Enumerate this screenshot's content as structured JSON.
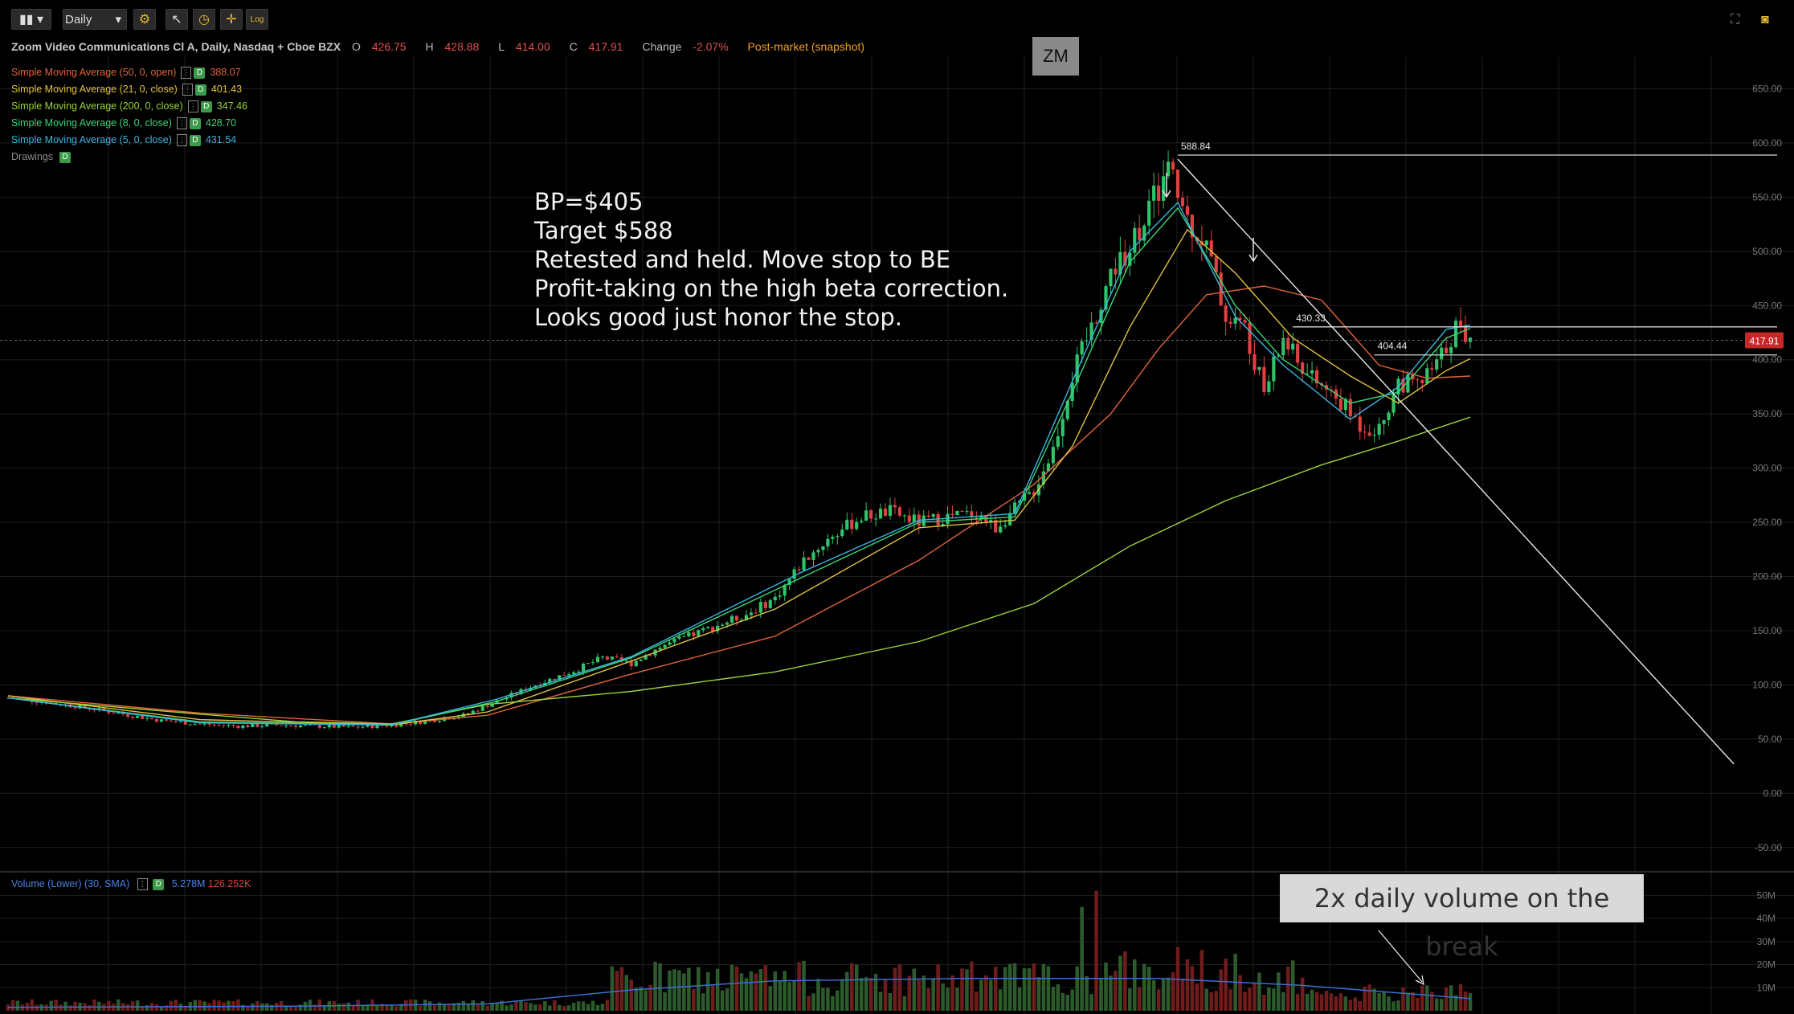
{
  "toolbar": {
    "chart_type_icon": "candlestick-icon",
    "period": "Daily",
    "settings_icon": "gear-icon",
    "tool_icons": [
      "pointer-icon",
      "clock-icon",
      "crosshair-icon"
    ],
    "log_label": "Log",
    "right_icons": [
      "fullscreen-icon",
      "camera-icon"
    ]
  },
  "header": {
    "title": "Zoom Video Communications Cl A, Daily, Nasdaq + Cboe BZX",
    "o_label": "O",
    "o_value": "426.75",
    "h_label": "H",
    "h_value": "428.88",
    "l_label": "L",
    "l_value": "414.00",
    "c_label": "C",
    "c_value": "417.91",
    "change_label": "Change",
    "change_value": "-2.07%",
    "postmarket": "Post-market (snapshot)"
  },
  "studies": [
    {
      "name": "Simple Moving Average (50, 0, open)",
      "value": "388.07",
      "color": "#e0643a"
    },
    {
      "name": "Simple Moving Average (21, 0, close)",
      "value": "401.43",
      "color": "#e0c040"
    },
    {
      "name": "Simple Moving Average (200, 0, close)",
      "value": "347.46",
      "color": "#9ad43a"
    },
    {
      "name": "Simple Moving Average (8, 0, close)",
      "value": "428.70",
      "color": "#3ad67a"
    },
    {
      "name": "Simple Moving Average (5, 0, close)",
      "value": "431.54",
      "color": "#3ab4e0"
    },
    {
      "name": "Drawings",
      "value": "",
      "color": "#8a8a8a"
    }
  ],
  "study_badge": "D",
  "symbol": "ZM",
  "note_lines": [
    "BP=$405",
    "Target $588",
    "Retested and held. Move stop to BE",
    "Profit-taking on the high beta correction.",
    "Looks good just honor the stop."
  ],
  "volume_note": "2x daily volume on the break",
  "volume_legend": {
    "name": "Volume (Lower) (30, SMA)",
    "value1": "5.278M",
    "value2": "126.252K"
  },
  "colors": {
    "up": "#2fc46a",
    "down": "#e04040",
    "vol_up": "#2d5a2d",
    "vol_down": "#6e1c1c",
    "grid": "#1e1e1e"
  },
  "chart_data": {
    "type": "line",
    "price_axis": {
      "ticks": [
        650,
        600,
        550,
        500,
        450,
        400,
        350,
        300,
        250,
        200,
        150,
        100,
        50,
        0,
        -50
      ],
      "tick_labels": [
        "650.00",
        "600.00",
        "550.00",
        "500.00",
        "450.00",
        "400.00",
        "350.00",
        "300.00",
        "250.00",
        "200.00",
        "150.00",
        "100.00",
        "50.00",
        "0.00",
        "-50.00"
      ],
      "range": [
        -65,
        680
      ]
    },
    "volume_axis": {
      "ticks": [
        50,
        40,
        30,
        20,
        10
      ],
      "tick_labels": [
        "50M",
        "40M",
        "30M",
        "20M",
        "10M"
      ],
      "range": [
        0,
        55
      ]
    },
    "current_price": "417.91",
    "levels": [
      {
        "label": "588.84",
        "value": 588.84
      },
      {
        "label": "430.33",
        "value": 430.33
      },
      {
        "label": "404.44",
        "value": 404.44
      }
    ],
    "x_range": [
      0,
      305
    ],
    "price_path": [
      [
        0,
        88
      ],
      [
        8,
        84
      ],
      [
        16,
        79
      ],
      [
        24,
        73
      ],
      [
        32,
        67
      ],
      [
        40,
        64
      ],
      [
        48,
        62
      ],
      [
        56,
        63
      ],
      [
        64,
        62
      ],
      [
        72,
        61
      ],
      [
        80,
        63
      ],
      [
        88,
        67
      ],
      [
        95,
        72
      ],
      [
        102,
        85
      ],
      [
        110,
        100
      ],
      [
        118,
        113
      ],
      [
        124,
        125
      ],
      [
        130,
        120
      ],
      [
        136,
        135
      ],
      [
        142,
        145
      ],
      [
        148,
        155
      ],
      [
        154,
        165
      ],
      [
        160,
        180
      ],
      [
        166,
        215
      ],
      [
        172,
        238
      ],
      [
        178,
        255
      ],
      [
        184,
        260
      ],
      [
        190,
        250
      ],
      [
        196,
        255
      ],
      [
        202,
        258
      ],
      [
        206,
        245
      ],
      [
        210,
        262
      ],
      [
        214,
        280
      ],
      [
        218,
        318
      ],
      [
        222,
        385
      ],
      [
        226,
        430
      ],
      [
        230,
        480
      ],
      [
        234,
        505
      ],
      [
        238,
        540
      ],
      [
        242,
        575
      ],
      [
        246,
        530
      ],
      [
        250,
        505
      ],
      [
        254,
        440
      ],
      [
        258,
        430
      ],
      [
        262,
        370
      ],
      [
        266,
        420
      ],
      [
        270,
        390
      ],
      [
        274,
        375
      ],
      [
        278,
        360
      ],
      [
        282,
        340
      ],
      [
        286,
        335
      ],
      [
        290,
        380
      ],
      [
        294,
        375
      ],
      [
        298,
        395
      ],
      [
        302,
        430
      ],
      [
        305,
        418
      ]
    ],
    "series": [
      {
        "name": "Simple Moving Average (50, 0, open)",
        "values": [
          [
            0,
            90
          ],
          [
            40,
            74
          ],
          [
            80,
            64
          ],
          [
            100,
            72
          ],
          [
            130,
            110
          ],
          [
            160,
            145
          ],
          [
            190,
            215
          ],
          [
            214,
            285
          ],
          [
            230,
            350
          ],
          [
            240,
            410
          ],
          [
            250,
            460
          ],
          [
            262,
            468
          ],
          [
            274,
            455
          ],
          [
            286,
            395
          ],
          [
            296,
            383
          ],
          [
            305,
            385
          ]
        ]
      },
      {
        "name": "Simple Moving Average (21, 0, close)",
        "values": [
          [
            0,
            90
          ],
          [
            40,
            68
          ],
          [
            80,
            63
          ],
          [
            100,
            75
          ],
          [
            130,
            122
          ],
          [
            160,
            170
          ],
          [
            190,
            245
          ],
          [
            210,
            252
          ],
          [
            222,
            320
          ],
          [
            234,
            430
          ],
          [
            246,
            520
          ],
          [
            256,
            480
          ],
          [
            268,
            420
          ],
          [
            280,
            385
          ],
          [
            290,
            360
          ],
          [
            300,
            390
          ],
          [
            305,
            401
          ]
        ]
      },
      {
        "name": "Simple Moving Average (200, 0, close)",
        "values": [
          [
            0,
            88
          ],
          [
            40,
            73
          ],
          [
            60,
            66
          ],
          [
            80,
            64
          ],
          [
            100,
            82
          ],
          [
            130,
            94
          ],
          [
            160,
            112
          ],
          [
            190,
            140
          ],
          [
            214,
            175
          ],
          [
            234,
            228
          ],
          [
            254,
            270
          ],
          [
            274,
            303
          ],
          [
            290,
            325
          ],
          [
            305,
            347
          ]
        ]
      },
      {
        "name": "Simple Moving Average (8, 0, close)",
        "values": [
          [
            0,
            88
          ],
          [
            40,
            66
          ],
          [
            80,
            63
          ],
          [
            102,
            85
          ],
          [
            130,
            125
          ],
          [
            166,
            200
          ],
          [
            190,
            250
          ],
          [
            210,
            255
          ],
          [
            222,
            370
          ],
          [
            234,
            490
          ],
          [
            244,
            540
          ],
          [
            256,
            450
          ],
          [
            266,
            400
          ],
          [
            280,
            360
          ],
          [
            290,
            370
          ],
          [
            300,
            420
          ],
          [
            305,
            429
          ]
        ]
      },
      {
        "name": "Simple Moving Average (5, 0, close)",
        "values": [
          [
            0,
            88
          ],
          [
            40,
            65
          ],
          [
            80,
            63
          ],
          [
            102,
            87
          ],
          [
            130,
            126
          ],
          [
            166,
            205
          ],
          [
            190,
            252
          ],
          [
            210,
            258
          ],
          [
            222,
            380
          ],
          [
            234,
            500
          ],
          [
            244,
            545
          ],
          [
            256,
            440
          ],
          [
            266,
            395
          ],
          [
            280,
            345
          ],
          [
            290,
            375
          ],
          [
            300,
            428
          ],
          [
            305,
            432
          ]
        ]
      }
    ],
    "volume_sma": [
      [
        0,
        1.5
      ],
      [
        60,
        2
      ],
      [
        100,
        3
      ],
      [
        130,
        9
      ],
      [
        160,
        13
      ],
      [
        200,
        14
      ],
      [
        240,
        14
      ],
      [
        270,
        11
      ],
      [
        305,
        5.3
      ]
    ],
    "trendline": [
      [
        244,
        585
      ],
      [
        360,
        27
      ]
    ]
  }
}
